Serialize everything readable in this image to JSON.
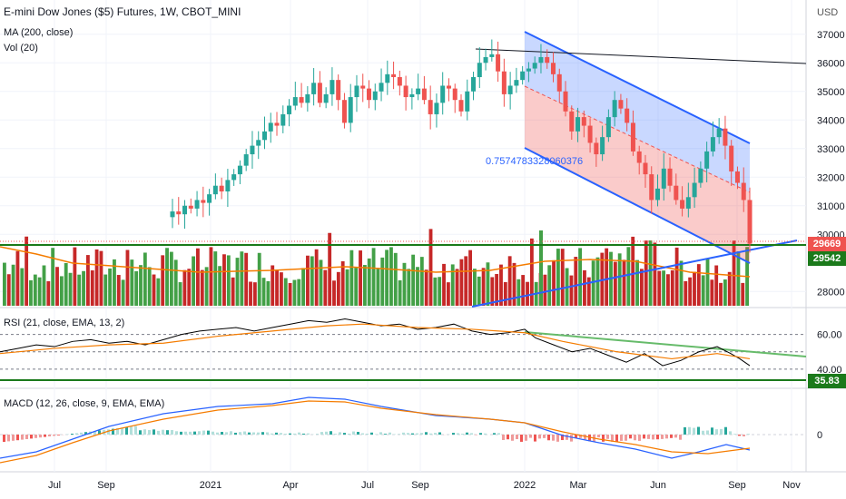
{
  "header": {
    "symbol_title": "E-mini Dow Jones ($5) Futures, 1W, CBOT_MINI",
    "ma_label": "MA (200, close)",
    "vol_label": "Vol (20)",
    "currency": "USD"
  },
  "price_axis": {
    "ticks": [
      "37000",
      "36000",
      "35000",
      "34000",
      "33000",
      "32000",
      "31000",
      "30000",
      "28000"
    ],
    "last_price": "29669",
    "ma_value": "29542"
  },
  "fib_label": "0.7574783328060376",
  "rsi": {
    "label": "RSI (21, close, EMA, 13, 2)",
    "ticks": [
      "60.00",
      "40.00"
    ],
    "current": "35.83"
  },
  "macd": {
    "label": "MACD (12, 26, close, 9, EMA, EMA)",
    "zero_tick": "0"
  },
  "time_axis": [
    "Jul",
    "Sep",
    "2021",
    "Apr",
    "Jul",
    "Sep",
    "2022",
    "Mar",
    "Jun",
    "Sep",
    "Nov"
  ],
  "colors": {
    "up": "#26a69a",
    "down": "#ef5350",
    "vol_up": "#43a047",
    "vol_down": "#c62828",
    "channel_line": "#2962ff",
    "ma_line": "#f57c00",
    "support": "#1b7a1b",
    "rsi_line": "#000000",
    "rsi_ema": "#f57c00",
    "rsi_trend": "#66bb6a",
    "macd_line": "#2962ff",
    "signal_line": "#f57c00"
  },
  "chart_data": {
    "type": "candlestick",
    "symbol": "E-mini Dow Jones ($5) Futures",
    "interval": "1W",
    "price_range": [
      27500,
      37500
    ],
    "closes": [
      30800,
      30700,
      31000,
      30900,
      31200,
      31100,
      31400,
      31700,
      31500,
      31900,
      32100,
      32400,
      32800,
      33100,
      33300,
      33600,
      33900,
      33800,
      34200,
      34500,
      34800,
      34600,
      34900,
      35300,
      34600,
      34900,
      35400,
      34700,
      33900,
      34800,
      35200,
      35100,
      34700,
      35000,
      35300,
      35600,
      35500,
      35200,
      34800,
      34900,
      35100,
      34700,
      34200,
      34600,
      35200,
      35100,
      34700,
      34300,
      35000,
      35500,
      36000,
      36200,
      36300,
      35700,
      34900,
      35200,
      35400,
      35700,
      35800,
      36000,
      36200,
      36000,
      35600,
      35000,
      34300,
      33600,
      34100,
      33800,
      33200,
      32800,
      33400,
      34100,
      34700,
      34400,
      33900,
      32900,
      32500,
      32100,
      31200,
      31600,
      32300,
      31700,
      31200,
      30900,
      31300,
      31800,
      32300,
      32900,
      33400,
      33700,
      33100,
      32200,
      31800,
      31200,
      29669
    ]
  }
}
